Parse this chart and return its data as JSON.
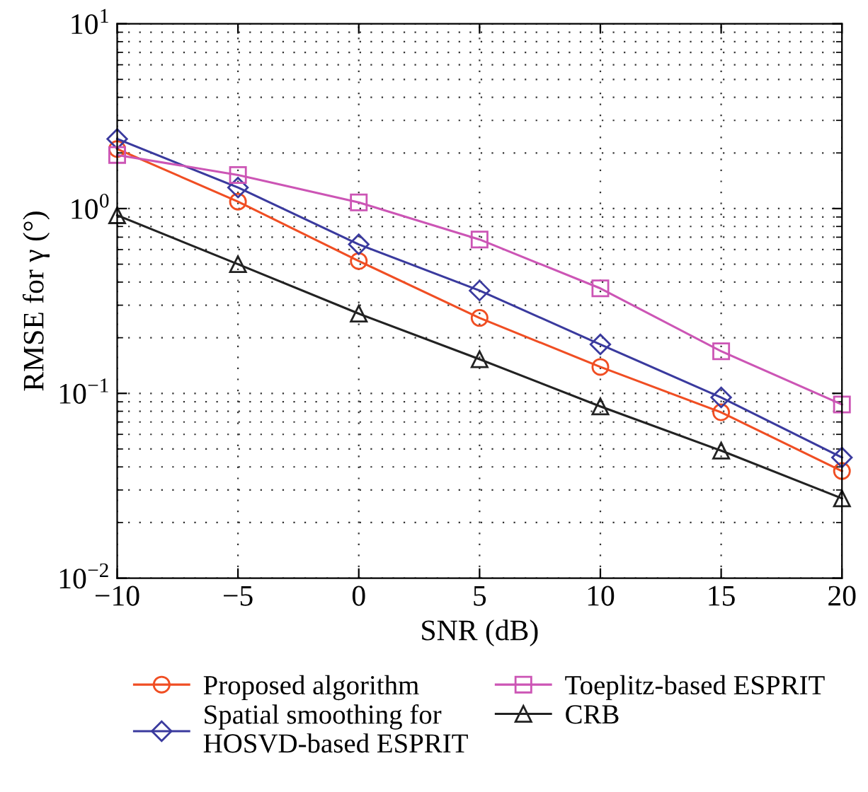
{
  "chart_data": {
    "type": "line",
    "xlabel": "SNR (dB)",
    "ylabel": "RMSE for γ (°)",
    "x": [
      -10,
      -5,
      0,
      5,
      10,
      15,
      20
    ],
    "series": [
      {
        "name": "Proposed algorithm",
        "color": "#f04e23",
        "marker": "circle",
        "values": [
          2.1,
          1.09,
          0.52,
          0.256,
          0.139,
          0.079,
          0.038
        ]
      },
      {
        "name": "Spatial smoothing for\nHOSVD-based ESPRIT",
        "color": "#3a3a9e",
        "marker": "diamond",
        "values": [
          2.38,
          1.3,
          0.64,
          0.36,
          0.184,
          0.095,
          0.045
        ]
      },
      {
        "name": "Toeplitz-based ESPRIT",
        "color": "#cc55b5",
        "marker": "square",
        "values": [
          1.95,
          1.52,
          1.08,
          0.68,
          0.37,
          0.169,
          0.087
        ]
      },
      {
        "name": "CRB",
        "color": "#222222",
        "marker": "triangle",
        "values": [
          0.92,
          0.5,
          0.27,
          0.153,
          0.085,
          0.049,
          0.027
        ]
      }
    ],
    "log": "y",
    "xlim": [
      -10,
      20
    ],
    "ylim": [
      0.01,
      10
    ],
    "xticks": [
      {
        "value": -10,
        "label": "−10"
      },
      {
        "value": -5,
        "label": "−5"
      },
      0,
      5,
      10,
      15,
      20
    ],
    "yticks": [
      {
        "value": 0.01,
        "label": "10$^{−2}$"
      },
      {
        "value": 0.1,
        "label": "10$^{−1}$"
      },
      {
        "value": 1,
        "label": "10$^{0}$"
      },
      {
        "value": 10,
        "label": "10$^{1}$"
      }
    ],
    "grid": true,
    "legend": "bottom",
    "line_style": "solid"
  }
}
